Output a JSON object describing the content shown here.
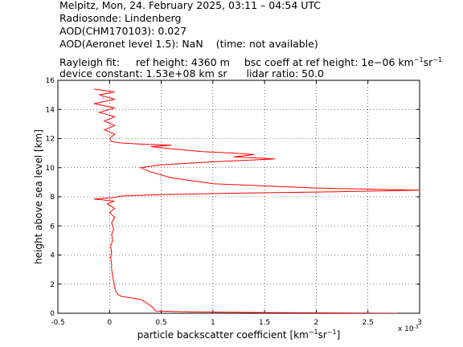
{
  "header": {
    "line1": "Melpitz, Mon, 24. February 2025, 03:11 – 04:54 UTC",
    "line2": "Radiosonde: Lindenberg",
    "line3": "AOD(CHM170103): 0.027",
    "line4a": "AOD(Aeronet level 1.5): NaN",
    "line4b": "(time: not available)",
    "line5a": "Rayleigh fit:",
    "line5b": "ref height: 4360 m",
    "line5c": "bsc coeff at ref height: 1e−06 km",
    "line5c_sup1": "−1",
    "line5c_mid": "sr",
    "line5c_sup2": "−1",
    "line6a": "device constant: 1.53e+08 km sr",
    "line6b": "lidar ratio: 50.0"
  },
  "chart_data": {
    "type": "line",
    "xlabel": "particle backscatter coefficient [km⁻¹sr⁻¹]",
    "xlabel_main": "particle backscatter coefficient [km",
    "xlabel_sup1": "−1",
    "xlabel_mid": "sr",
    "xlabel_sup2": "−1",
    "xlabel_end": "]",
    "ylabel": "height above sea level [km]",
    "x_multiplier": "x 10",
    "x_multiplier_exp": "-3",
    "xlim": [
      -0.5,
      3
    ],
    "ylim": [
      0,
      16
    ],
    "xticks": [
      "-0.5",
      "0",
      "0.5",
      "1",
      "1.5",
      "2",
      "2.5",
      "3"
    ],
    "yticks": [
      "0",
      "2",
      "4",
      "6",
      "8",
      "10",
      "12",
      "14",
      "16"
    ],
    "grid": "dotted",
    "series": [
      {
        "color": "#ff0000",
        "points": [
          [
            2.78,
            0.0
          ],
          [
            1.5,
            0.05
          ],
          [
            0.8,
            0.1
          ],
          [
            0.45,
            0.15
          ],
          [
            0.43,
            0.25
          ],
          [
            0.42,
            0.4
          ],
          [
            0.38,
            0.6
          ],
          [
            0.34,
            0.8
          ],
          [
            0.3,
            0.95
          ],
          [
            0.22,
            1.05
          ],
          [
            0.12,
            1.15
          ],
          [
            0.08,
            1.3
          ],
          [
            0.06,
            1.5
          ],
          [
            0.05,
            1.8
          ],
          [
            0.04,
            2.2
          ],
          [
            0.03,
            2.6
          ],
          [
            0.02,
            3.0
          ],
          [
            0.02,
            3.4
          ],
          [
            0.01,
            3.8
          ],
          [
            0.02,
            4.2
          ],
          [
            0.01,
            4.6
          ],
          [
            0.03,
            5.0
          ],
          [
            0.02,
            5.4
          ],
          [
            0.04,
            5.8
          ],
          [
            0.02,
            6.2
          ],
          [
            0.05,
            6.6
          ],
          [
            0.0,
            6.9
          ],
          [
            0.05,
            7.2
          ],
          [
            -0.02,
            7.5
          ],
          [
            0.04,
            7.7
          ],
          [
            -0.15,
            7.85
          ],
          [
            0.05,
            7.95
          ],
          [
            0.1,
            8.05
          ],
          [
            0.5,
            8.15
          ],
          [
            1.2,
            8.25
          ],
          [
            2.2,
            8.35
          ],
          [
            3.0,
            8.45
          ],
          [
            2.0,
            8.6
          ],
          [
            1.0,
            8.9
          ],
          [
            0.6,
            9.3
          ],
          [
            0.4,
            9.7
          ],
          [
            0.3,
            10.0
          ],
          [
            0.5,
            10.2
          ],
          [
            1.0,
            10.4
          ],
          [
            1.6,
            10.6
          ],
          [
            1.2,
            10.75
          ],
          [
            1.4,
            10.9
          ],
          [
            1.2,
            11.0
          ],
          [
            0.9,
            11.1
          ],
          [
            0.6,
            11.3
          ],
          [
            0.4,
            11.45
          ],
          [
            0.6,
            11.55
          ],
          [
            0.3,
            11.62
          ],
          [
            0.1,
            11.7
          ],
          [
            0.02,
            11.8
          ],
          [
            0.0,
            12.0
          ],
          [
            0.05,
            12.3
          ],
          [
            -0.05,
            12.6
          ],
          [
            0.05,
            12.9
          ],
          [
            -0.05,
            13.2
          ],
          [
            0.05,
            13.5
          ],
          [
            -0.1,
            13.8
          ],
          [
            0.05,
            14.1
          ],
          [
            -0.15,
            14.4
          ],
          [
            0.05,
            14.7
          ],
          [
            -0.1,
            15.0
          ],
          [
            0.05,
            15.2
          ],
          [
            -0.15,
            15.4
          ]
        ]
      }
    ]
  }
}
